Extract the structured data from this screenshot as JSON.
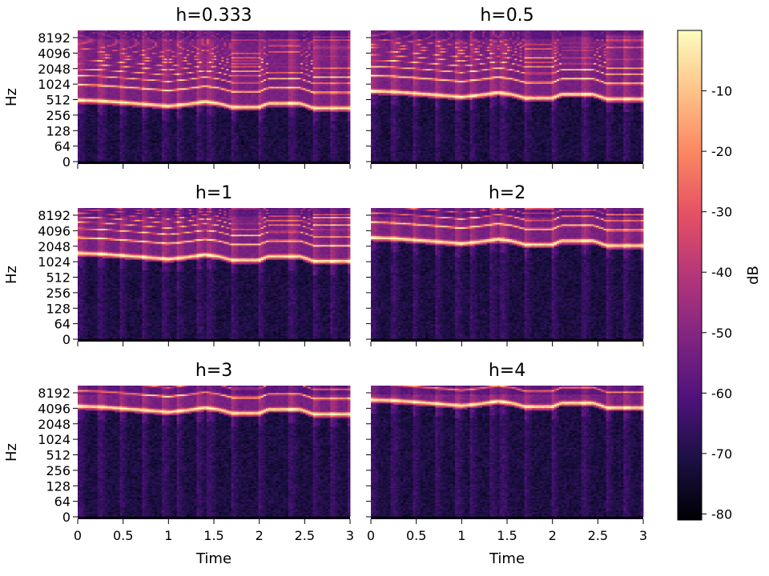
{
  "chart_data": {
    "type": "heatmap",
    "description_kind": "spectrogram grid (harmonic spectra)",
    "panels": [
      {
        "title": "h=0.333",
        "harmonic": 0.333
      },
      {
        "title": "h=0.5",
        "harmonic": 0.5
      },
      {
        "title": "h=1",
        "harmonic": 1
      },
      {
        "title": "h=2",
        "harmonic": 2
      },
      {
        "title": "h=3",
        "harmonic": 3
      },
      {
        "title": "h=4",
        "harmonic": 4
      }
    ],
    "xlabel": "Time",
    "ylabel": "Hz",
    "xlim": [
      0,
      3
    ],
    "x_ticks": [
      "0",
      "0.5",
      "1",
      "1.5",
      "2",
      "2.5",
      "3"
    ],
    "x_tick_values": [
      0,
      0.5,
      1,
      1.5,
      2,
      2.5,
      3
    ],
    "y_scale": "log2 (symlog)",
    "y_ticks": [
      "0",
      "64",
      "128",
      "256",
      "512",
      "1024",
      "2048",
      "4096",
      "8192"
    ],
    "y_tick_values": [
      0,
      64,
      128,
      256,
      512,
      1024,
      2048,
      4096,
      8192
    ],
    "colorbar": {
      "label": "dB",
      "range": [
        -81,
        0
      ],
      "ticks": [
        "-10",
        "-20",
        "-30",
        "-40",
        "-50",
        "-60",
        "-70",
        "-80"
      ],
      "tick_values": [
        -10,
        -20,
        -30,
        -40,
        -50,
        -60,
        -70,
        -80
      ],
      "colormap": "magma"
    },
    "base_melody_hz": [
      [
        0,
        1500
      ],
      [
        0.25,
        1450
      ],
      [
        0.5,
        1350
      ],
      [
        0.75,
        1250
      ],
      [
        1.0,
        1150
      ],
      [
        1.2,
        1250
      ],
      [
        1.4,
        1400
      ],
      [
        1.55,
        1300
      ],
      [
        1.7,
        1100
      ],
      [
        2.0,
        1100
      ],
      [
        2.1,
        1300
      ],
      [
        2.45,
        1300
      ],
      [
        2.6,
        1050
      ],
      [
        3.0,
        1050
      ]
    ],
    "onsets_s": [
      0.02,
      0.25,
      0.47,
      0.72,
      0.95,
      1.1,
      1.33,
      1.45,
      1.7,
      2.0,
      2.35,
      2.6,
      2.8,
      2.98
    ]
  }
}
